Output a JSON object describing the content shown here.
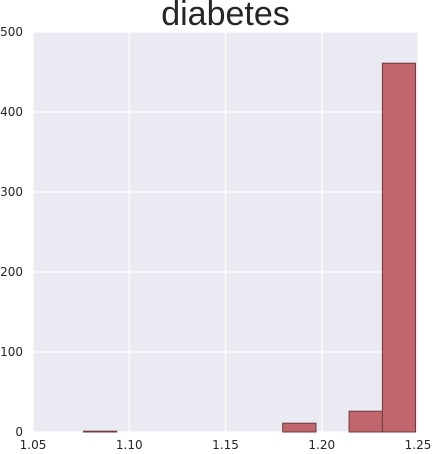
{
  "chart_data": {
    "type": "bar",
    "title": "diabetes",
    "xlabel": "",
    "ylabel": "",
    "xlim": [
      1.05,
      1.25
    ],
    "ylim": [
      0,
      500
    ],
    "grid": true,
    "xticks": [
      "1.05",
      "1.10",
      "1.15",
      "1.20",
      "1.25"
    ],
    "yticks": [
      "0",
      "100",
      "200",
      "300",
      "400",
      "500"
    ],
    "bins": [
      {
        "x0": 1.0762,
        "x1": 1.0935,
        "count": 1
      },
      {
        "x0": 1.0935,
        "x1": 1.1107,
        "count": 0
      },
      {
        "x0": 1.1107,
        "x1": 1.128,
        "count": 0
      },
      {
        "x0": 1.128,
        "x1": 1.1452,
        "count": 0
      },
      {
        "x0": 1.1452,
        "x1": 1.1625,
        "count": 0
      },
      {
        "x0": 1.1625,
        "x1": 1.1797,
        "count": 0
      },
      {
        "x0": 1.1797,
        "x1": 1.197,
        "count": 11
      },
      {
        "x0": 1.197,
        "x1": 1.2142,
        "count": 0
      },
      {
        "x0": 1.2142,
        "x1": 1.2315,
        "count": 26
      },
      {
        "x0": 1.2315,
        "x1": 1.2487,
        "count": 461
      }
    ],
    "colors": {
      "background": "#eaeaf2",
      "grid": "#ffffff",
      "bar_fill": "#c0666c",
      "bar_edge": "#6e3a3e"
    }
  }
}
